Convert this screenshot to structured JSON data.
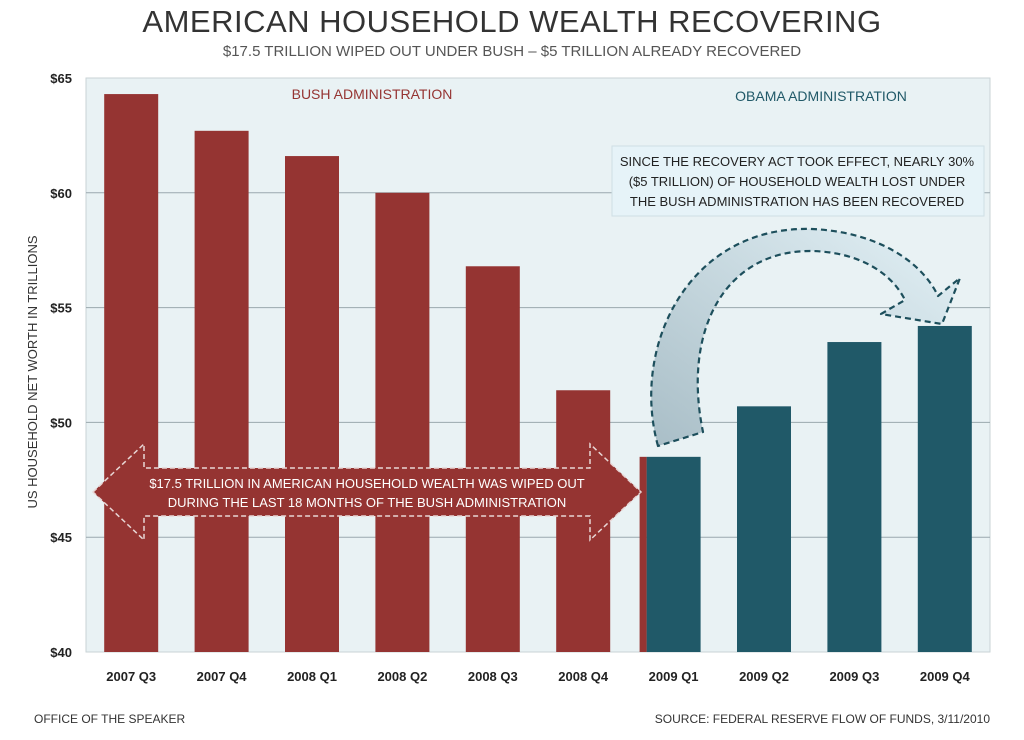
{
  "title": "AMERICAN HOUSEHOLD WEALTH RECOVERING",
  "subtitle": "$17.5 TRILLION WIPED OUT UNDER BUSH – $5 TRILLION ALREADY RECOVERED",
  "footer": {
    "left": "OFFICE OF THE SPEAKER",
    "right": "SOURCE: FEDERAL RESERVE FLOW OF FUNDS, 3/11/2010"
  },
  "colors": {
    "bush": "#953432",
    "obama": "#205968",
    "plot_bg": "#e9f2f4",
    "grid": "#9aa8ae"
  },
  "chart_data": {
    "type": "bar",
    "title": "AMERICAN HOUSEHOLD WEALTH RECOVERING",
    "ylabel": "US HOUSEHOLD NET WORTH IN TRILLIONS",
    "xlabel": "",
    "ylim": [
      40,
      65
    ],
    "yticks": [
      40,
      45,
      50,
      55,
      60,
      65
    ],
    "ytick_labels": [
      "$40",
      "$45",
      "$50",
      "$55",
      "$60",
      "$65"
    ],
    "grid": true,
    "categories": [
      "2007 Q3",
      "2007 Q4",
      "2008 Q1",
      "2008 Q2",
      "2008 Q3",
      "2008 Q4",
      "2009 Q1",
      "2009 Q2",
      "2009 Q3",
      "2009 Q4"
    ],
    "values": [
      64.3,
      62.7,
      61.6,
      60.0,
      56.8,
      51.4,
      48.5,
      50.7,
      53.5,
      54.2
    ],
    "administration": [
      "bush",
      "bush",
      "bush",
      "bush",
      "bush",
      "bush",
      "obama",
      "obama",
      "obama",
      "obama"
    ],
    "annotations": {
      "bush_label": "BUSH ADMINISTRATION",
      "obama_label": "OBAMA ADMINISTRATION",
      "wiped_out": [
        "$17.5 TRILLION IN AMERICAN HOUSEHOLD WEALTH WAS WIPED OUT",
        "DURING THE LAST 18 MONTHS OF THE BUSH ADMINISTRATION"
      ],
      "recovery": [
        "SINCE THE RECOVERY ACT TOOK EFFECT, NEARLY 30%",
        "($5 TRILLION) OF HOUSEHOLD WEALTH LOST UNDER",
        "THE BUSH ADMINISTRATION HAS BEEN RECOVERED"
      ]
    }
  }
}
